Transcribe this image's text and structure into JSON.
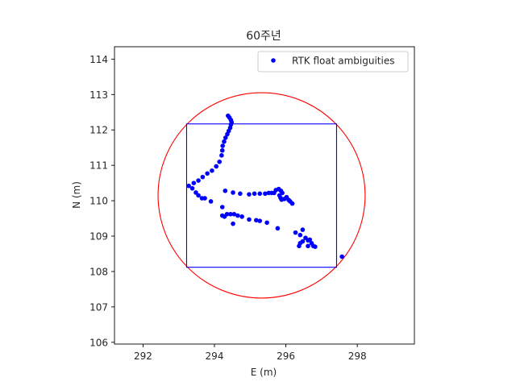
{
  "chart_data": {
    "type": "scatter",
    "title": "60주년",
    "xlabel": "E (m)",
    "ylabel": "N (m)",
    "xlim": [
      291.2,
      299.6
    ],
    "ylim": [
      105.95,
      114.35
    ],
    "xticks": [
      292,
      294,
      296,
      298
    ],
    "yticks": [
      106,
      107,
      108,
      109,
      110,
      111,
      112,
      113,
      114
    ],
    "grid": false,
    "legend_position": "upper-right",
    "series": [
      {
        "name": "RTK float ambiguities",
        "marker": "point",
        "color": "#0000ff",
        "points": [
          [
            294.38,
            112.4
          ],
          [
            294.42,
            112.35
          ],
          [
            294.46,
            112.28
          ],
          [
            294.48,
            112.22
          ],
          [
            294.46,
            112.15
          ],
          [
            294.44,
            112.06
          ],
          [
            294.4,
            111.97
          ],
          [
            294.36,
            111.88
          ],
          [
            294.31,
            111.78
          ],
          [
            294.27,
            111.67
          ],
          [
            294.23,
            111.55
          ],
          [
            294.22,
            111.42
          ],
          [
            294.2,
            111.28
          ],
          [
            294.14,
            111.1
          ],
          [
            294.05,
            110.97
          ],
          [
            293.93,
            110.85
          ],
          [
            293.8,
            110.77
          ],
          [
            293.67,
            110.67
          ],
          [
            293.55,
            110.57
          ],
          [
            293.42,
            110.5
          ],
          [
            293.28,
            110.42
          ],
          [
            293.38,
            110.35
          ],
          [
            293.48,
            110.23
          ],
          [
            293.55,
            110.15
          ],
          [
            293.65,
            110.07
          ],
          [
            293.73,
            110.07
          ],
          [
            293.9,
            109.98
          ],
          [
            294.3,
            110.28
          ],
          [
            294.52,
            110.23
          ],
          [
            294.72,
            110.2
          ],
          [
            294.97,
            110.18
          ],
          [
            295.12,
            110.2
          ],
          [
            295.27,
            110.2
          ],
          [
            295.42,
            110.2
          ],
          [
            295.52,
            110.22
          ],
          [
            295.6,
            110.22
          ],
          [
            295.67,
            110.22
          ],
          [
            295.72,
            110.3
          ],
          [
            295.8,
            110.33
          ],
          [
            295.86,
            110.28
          ],
          [
            295.9,
            110.22
          ],
          [
            295.82,
            110.15
          ],
          [
            295.85,
            110.08
          ],
          [
            295.88,
            110.03
          ],
          [
            295.96,
            110.05
          ],
          [
            296.02,
            110.1
          ],
          [
            296.08,
            110.02
          ],
          [
            296.12,
            109.98
          ],
          [
            296.18,
            109.92
          ],
          [
            294.22,
            109.82
          ],
          [
            294.22,
            109.58
          ],
          [
            294.28,
            109.55
          ],
          [
            294.35,
            109.62
          ],
          [
            294.45,
            109.62
          ],
          [
            294.55,
            109.62
          ],
          [
            294.65,
            109.58
          ],
          [
            294.77,
            109.55
          ],
          [
            294.97,
            109.47
          ],
          [
            295.17,
            109.45
          ],
          [
            295.27,
            109.43
          ],
          [
            295.47,
            109.38
          ],
          [
            295.77,
            109.22
          ],
          [
            296.27,
            109.1
          ],
          [
            296.4,
            109.03
          ],
          [
            296.47,
            109.18
          ],
          [
            296.55,
            108.95
          ],
          [
            296.62,
            108.88
          ],
          [
            296.67,
            108.9
          ],
          [
            296.72,
            108.8
          ],
          [
            296.77,
            108.72
          ],
          [
            296.47,
            108.85
          ],
          [
            296.4,
            108.8
          ],
          [
            296.37,
            108.72
          ],
          [
            296.62,
            108.72
          ],
          [
            296.82,
            108.7
          ],
          [
            294.52,
            109.35
          ],
          [
            297.57,
            108.42
          ]
        ]
      }
    ],
    "circle": {
      "color": "#ff0000",
      "center": [
        295.32,
        110.15
      ],
      "radius": 2.9
    },
    "rectangle": {
      "color": "#0000ff",
      "x_range": [
        293.22,
        297.42
      ],
      "y_range": [
        108.12,
        112.17
      ]
    }
  }
}
